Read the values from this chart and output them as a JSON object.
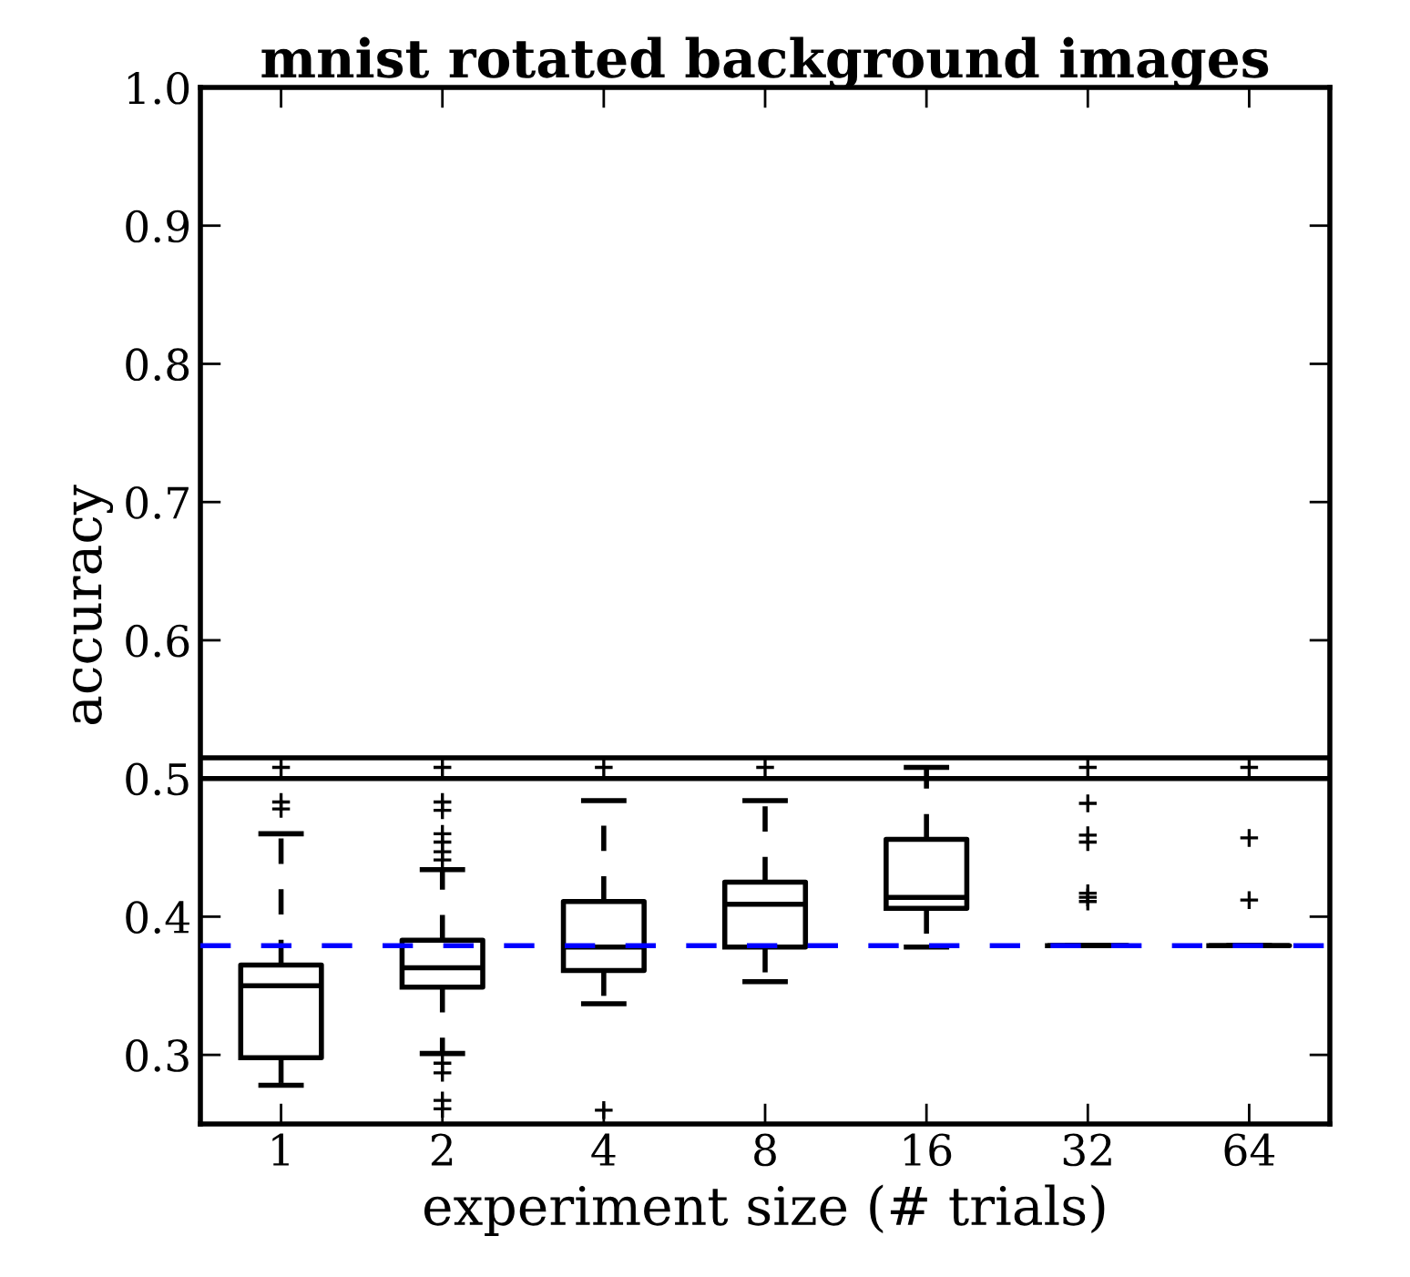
{
  "chart_data": {
    "type": "box",
    "title": "mnist rotated background images",
    "xlabel": "experiment size (# trials)",
    "ylabel": "accuracy",
    "categories": [
      "1",
      "2",
      "4",
      "8",
      "16",
      "32",
      "64"
    ],
    "boxes": [
      {
        "low": 0.278,
        "q1": 0.298,
        "median": 0.35,
        "q3": 0.365,
        "high": 0.46,
        "outliers": [
          0.483,
          0.478,
          0.508
        ]
      },
      {
        "low": 0.301,
        "q1": 0.349,
        "median": 0.363,
        "q3": 0.383,
        "high": 0.434,
        "outliers": [
          0.483,
          0.477,
          0.46,
          0.454,
          0.447,
          0.441,
          0.508,
          0.294,
          0.287,
          0.267,
          0.261
        ]
      },
      {
        "low": 0.337,
        "q1": 0.361,
        "median": 0.378,
        "q3": 0.411,
        "high": 0.484,
        "outliers": [
          0.26,
          0.508
        ]
      },
      {
        "low": 0.353,
        "q1": 0.378,
        "median": 0.409,
        "q3": 0.425,
        "high": 0.484,
        "outliers": [
          0.508
        ]
      },
      {
        "low": 0.378,
        "q1": 0.406,
        "median": 0.414,
        "q3": 0.456,
        "high": 0.508
      },
      {
        "low": 0.379,
        "q1": 0.379,
        "median": 0.379,
        "q3": 0.379,
        "high": 0.379,
        "outliers": [
          0.508,
          0.482,
          0.459,
          0.454,
          0.417,
          0.414,
          0.411
        ]
      },
      {
        "low": 0.379,
        "q1": 0.379,
        "median": 0.379,
        "q3": 0.379,
        "high": 0.379,
        "outliers": [
          0.508,
          0.457,
          0.412
        ]
      }
    ],
    "ylim": [
      0.25,
      1.0
    ],
    "yticks": [
      0.3,
      0.4,
      0.5,
      0.6,
      0.7,
      0.8,
      0.9,
      {
        "value": 1.0,
        "label": "1.0"
      }
    ],
    "ref_lines": [
      {
        "axis": "y",
        "value": 0.379,
        "color": "#0000ff",
        "line_style": "dashed"
      },
      {
        "axis": "y",
        "value": 0.5,
        "color": "#000000",
        "line_style": "solid"
      },
      {
        "axis": "y",
        "value": 0.515,
        "color": "#000000",
        "line_style": "solid"
      }
    ],
    "grid": false,
    "legend": false
  }
}
